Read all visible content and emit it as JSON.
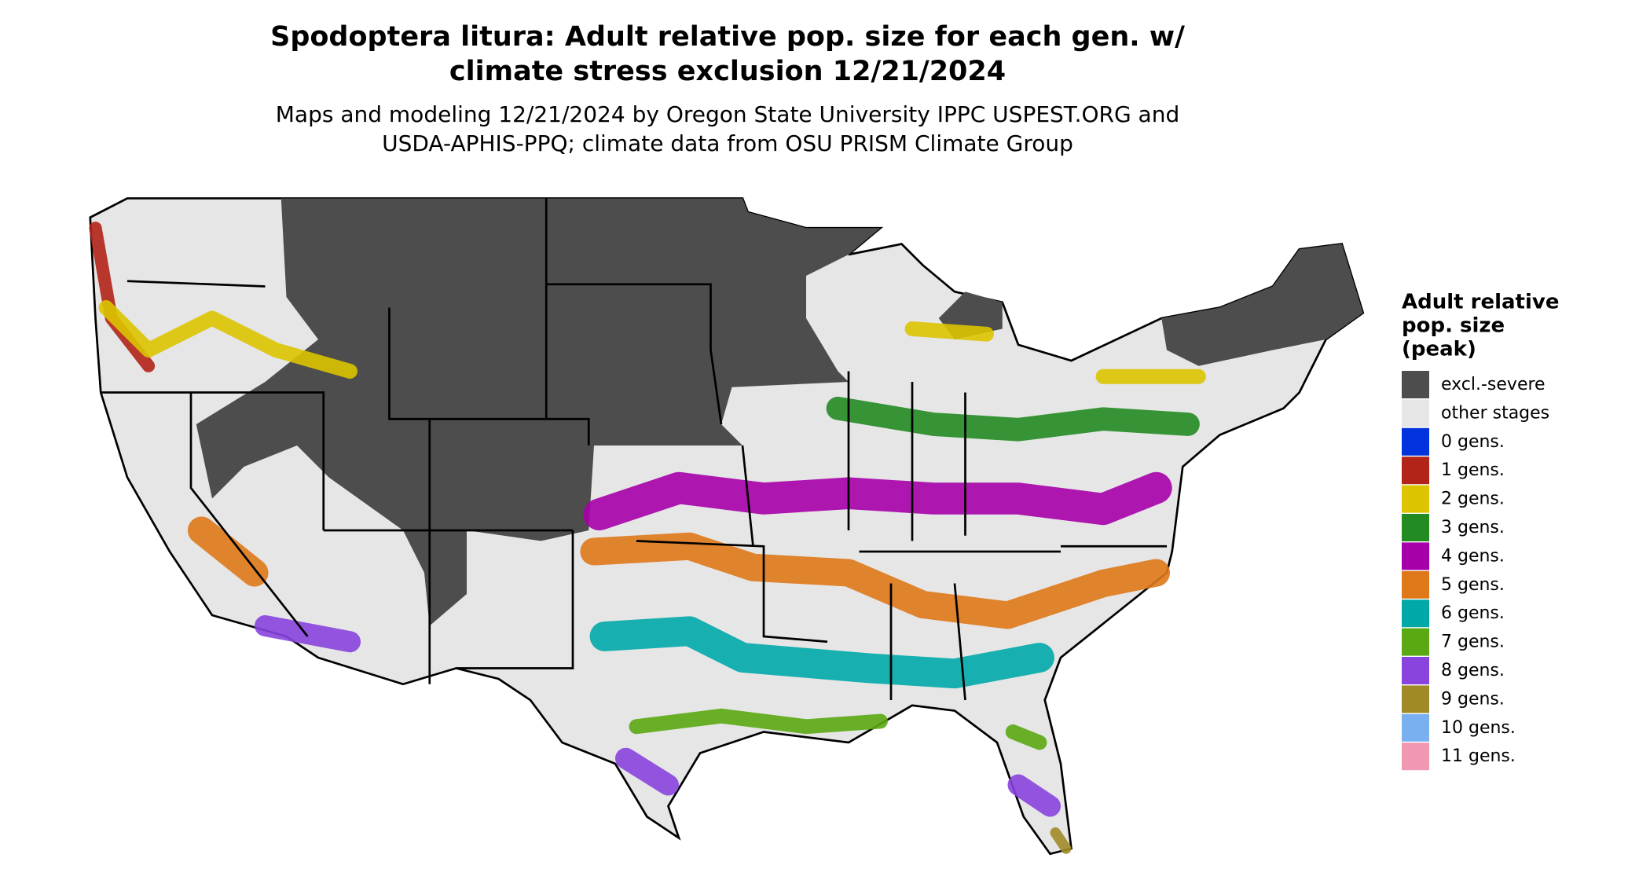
{
  "title": [
    "Spodoptera litura: Adult relative pop. size for each gen. w/",
    "climate stress exclusion 12/21/2024"
  ],
  "subtitle": [
    "Maps and modeling 12/21/2024 by Oregon State University IPPC USPEST.ORG and",
    "USDA-APHIS-PPQ; climate data from OSU PRISM Climate Group"
  ],
  "legend": {
    "title": [
      "Adult relative",
      "pop. size",
      "(peak)"
    ],
    "items": [
      {
        "label": "excl.-severe",
        "color": "#4d4d4d"
      },
      {
        "label": "other stages",
        "color": "#e6e6e6"
      },
      {
        "label": "0 gens.",
        "color": "#0033dd"
      },
      {
        "label": "1 gens.",
        "color": "#b22418"
      },
      {
        "label": "2 gens.",
        "color": "#dcc400"
      },
      {
        "label": "3 gens.",
        "color": "#228b22"
      },
      {
        "label": "4 gens.",
        "color": "#a600aa"
      },
      {
        "label": "5 gens.",
        "color": "#de7818"
      },
      {
        "label": "6 gens.",
        "color": "#00a8a8"
      },
      {
        "label": "7 gens.",
        "color": "#5aa812"
      },
      {
        "label": "8 gens.",
        "color": "#8844dd"
      },
      {
        "label": "9 gens.",
        "color": "#a08a28"
      },
      {
        "label": "10 gens.",
        "color": "#78b0f0"
      },
      {
        "label": "11 gens.",
        "color": "#f098b2"
      }
    ]
  }
}
